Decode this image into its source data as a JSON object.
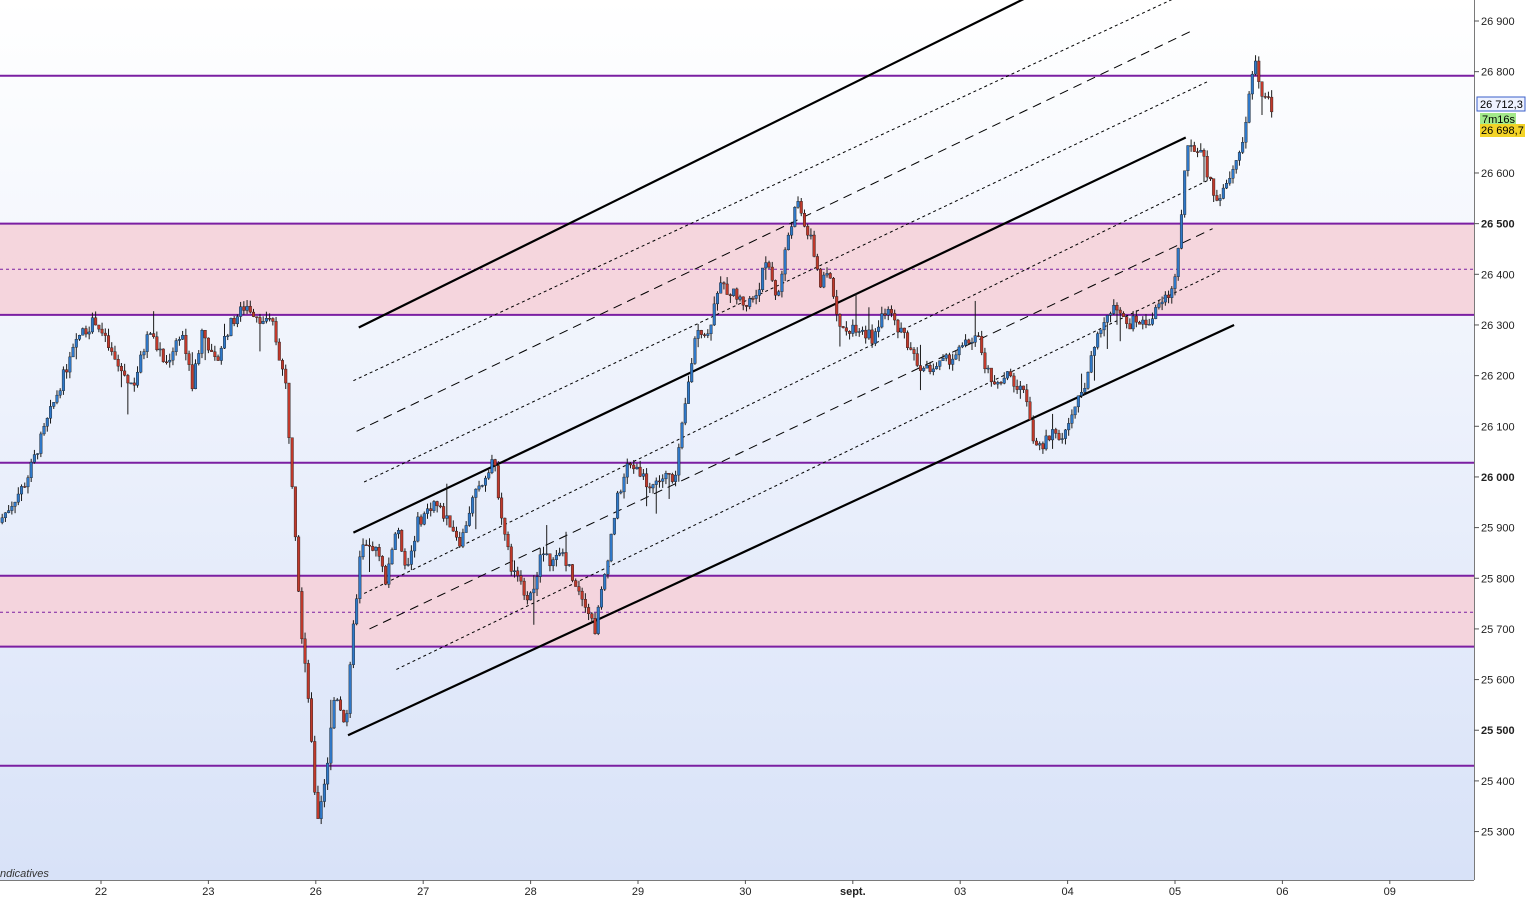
{
  "chart_data": {
    "type": "candlestick",
    "watermark": "ndicatives",
    "price_tags": {
      "last": "26 712,3",
      "timer": "7m16s",
      "other": "26 698,7"
    },
    "y_range": [
      25200,
      26950
    ],
    "y_ticks": [
      {
        "value": 26900,
        "label": "26 900",
        "bold": false
      },
      {
        "value": 26800,
        "label": "26 800",
        "bold": false
      },
      {
        "value": 26600,
        "label": "26 600",
        "bold": false
      },
      {
        "value": 26500,
        "label": "26 500",
        "bold": true
      },
      {
        "value": 26400,
        "label": "26 400",
        "bold": false
      },
      {
        "value": 26300,
        "label": "26 300",
        "bold": false
      },
      {
        "value": 26200,
        "label": "26 200",
        "bold": false
      },
      {
        "value": 26100,
        "label": "26 100",
        "bold": false
      },
      {
        "value": 26000,
        "label": "26 000",
        "bold": true
      },
      {
        "value": 25900,
        "label": "25 900",
        "bold": false
      },
      {
        "value": 25800,
        "label": "25 800",
        "bold": false
      },
      {
        "value": 25700,
        "label": "25 700",
        "bold": false
      },
      {
        "value": 25600,
        "label": "25 600",
        "bold": false
      },
      {
        "value": 25500,
        "label": "25 500",
        "bold": true
      },
      {
        "value": 25400,
        "label": "25 400",
        "bold": false
      },
      {
        "value": 25300,
        "label": "25 300",
        "bold": false
      }
    ],
    "x_ticks": [
      {
        "day": 0,
        "label": "22",
        "bold": false
      },
      {
        "day": 1,
        "label": "23",
        "bold": false
      },
      {
        "day": 2,
        "label": "26",
        "bold": false
      },
      {
        "day": 3,
        "label": "27",
        "bold": false
      },
      {
        "day": 4,
        "label": "28",
        "bold": false
      },
      {
        "day": 5,
        "label": "29",
        "bold": false
      },
      {
        "day": 6,
        "label": "30",
        "bold": false
      },
      {
        "day": 7,
        "label": "sept.",
        "bold": true
      },
      {
        "day": 8,
        "label": "03",
        "bold": false
      },
      {
        "day": 9,
        "label": "04",
        "bold": false
      },
      {
        "day": 10,
        "label": "05",
        "bold": false
      },
      {
        "day": 11,
        "label": "06",
        "bold": false
      },
      {
        "day": 12,
        "label": "09",
        "bold": false
      }
    ],
    "zones": [
      {
        "from": 26320,
        "to": 26500,
        "mid": 26410
      },
      {
        "from": 25665,
        "to": 25805,
        "mid": 25733
      }
    ],
    "hlines": [
      26792,
      26500,
      26320,
      26028,
      25805,
      25665,
      25430
    ],
    "channels": [
      {
        "style": "solid",
        "points": [
          [
            2.4,
            26295
          ],
          [
            8.75,
            26960
          ]
        ]
      },
      {
        "style": "solid",
        "points": [
          [
            2.35,
            25890
          ],
          [
            10.1,
            26670
          ]
        ]
      },
      {
        "style": "solid",
        "points": [
          [
            2.3,
            25490
          ],
          [
            10.55,
            26300
          ]
        ]
      },
      {
        "style": "dotted",
        "points": [
          [
            2.35,
            26190
          ],
          [
            10.15,
            26960
          ]
        ]
      },
      {
        "style": "dashed",
        "points": [
          [
            2.38,
            26090
          ],
          [
            10.15,
            26880
          ]
        ]
      },
      {
        "style": "dotted",
        "points": [
          [
            2.45,
            25990
          ],
          [
            10.3,
            26780
          ]
        ]
      },
      {
        "style": "dotted",
        "points": [
          [
            2.45,
            25770
          ],
          [
            10.35,
            26590
          ]
        ]
      },
      {
        "style": "dashed",
        "points": [
          [
            2.5,
            25700
          ],
          [
            10.35,
            26490
          ]
        ]
      },
      {
        "style": "dotted",
        "points": [
          [
            2.75,
            25620
          ],
          [
            10.45,
            26410
          ]
        ]
      }
    ],
    "path": [
      [
        -0.95,
        25910
      ],
      [
        -0.7,
        25990
      ],
      [
        -0.55,
        26080
      ],
      [
        -0.35,
        26200
      ],
      [
        -0.2,
        26280
      ],
      [
        -0.05,
        26310
      ],
      [
        0.15,
        26220
      ],
      [
        0.3,
        26180
      ],
      [
        0.45,
        26290
      ],
      [
        0.6,
        26220
      ],
      [
        0.75,
        26290
      ],
      [
        0.85,
        26180
      ],
      [
        0.95,
        26300
      ],
      [
        1.05,
        26220
      ],
      [
        1.2,
        26300
      ],
      [
        1.35,
        26340
      ],
      [
        1.5,
        26310
      ],
      [
        1.6,
        26300
      ],
      [
        1.72,
        26180
      ],
      [
        1.8,
        25930
      ],
      [
        1.86,
        25710
      ],
      [
        1.92,
        25600
      ],
      [
        1.98,
        25400
      ],
      [
        2.02,
        25330
      ],
      [
        2.1,
        25420
      ],
      [
        2.18,
        25580
      ],
      [
        2.28,
        25510
      ],
      [
        2.35,
        25700
      ],
      [
        2.42,
        25860
      ],
      [
        2.55,
        25860
      ],
      [
        2.65,
        25800
      ],
      [
        2.75,
        25900
      ],
      [
        2.85,
        25820
      ],
      [
        2.95,
        25910
      ],
      [
        3.1,
        25950
      ],
      [
        3.25,
        25910
      ],
      [
        3.35,
        25870
      ],
      [
        3.45,
        25950
      ],
      [
        3.55,
        25990
      ],
      [
        3.65,
        26040
      ],
      [
        3.75,
        25900
      ],
      [
        3.82,
        25820
      ],
      [
        3.9,
        25790
      ],
      [
        4.0,
        25760
      ],
      [
        4.1,
        25850
      ],
      [
        4.2,
        25830
      ],
      [
        4.3,
        25850
      ],
      [
        4.4,
        25800
      ],
      [
        4.5,
        25760
      ],
      [
        4.6,
        25700
      ],
      [
        4.7,
        25820
      ],
      [
        4.8,
        25950
      ],
      [
        4.9,
        26020
      ],
      [
        5.0,
        26020
      ],
      [
        5.1,
        25980
      ],
      [
        5.25,
        26000
      ],
      [
        5.35,
        26000
      ],
      [
        5.4,
        26080
      ],
      [
        5.48,
        26200
      ],
      [
        5.55,
        26300
      ],
      [
        5.65,
        26280
      ],
      [
        5.75,
        26380
      ],
      [
        5.9,
        26360
      ],
      [
        6.0,
        26340
      ],
      [
        6.1,
        26360
      ],
      [
        6.2,
        26430
      ],
      [
        6.3,
        26350
      ],
      [
        6.4,
        26480
      ],
      [
        6.48,
        26540
      ],
      [
        6.55,
        26500
      ],
      [
        6.62,
        26460
      ],
      [
        6.7,
        26380
      ],
      [
        6.78,
        26400
      ],
      [
        6.85,
        26330
      ],
      [
        6.92,
        26280
      ],
      [
        7.0,
        26300
      ],
      [
        7.1,
        26290
      ],
      [
        7.2,
        26270
      ],
      [
        7.3,
        26330
      ],
      [
        7.45,
        26290
      ],
      [
        7.55,
        26250
      ],
      [
        7.65,
        26210
      ],
      [
        7.8,
        26220
      ],
      [
        7.95,
        26240
      ],
      [
        8.05,
        26260
      ],
      [
        8.15,
        26280
      ],
      [
        8.25,
        26210
      ],
      [
        8.35,
        26180
      ],
      [
        8.45,
        26200
      ],
      [
        8.55,
        26170
      ],
      [
        8.62,
        26160
      ],
      [
        8.68,
        26080
      ],
      [
        8.75,
        26050
      ],
      [
        8.85,
        26090
      ],
      [
        8.95,
        26080
      ],
      [
        9.05,
        26120
      ],
      [
        9.15,
        26180
      ],
      [
        9.25,
        26250
      ],
      [
        9.35,
        26320
      ],
      [
        9.45,
        26330
      ],
      [
        9.55,
        26300
      ],
      [
        9.65,
        26310
      ],
      [
        9.72,
        26300
      ],
      [
        9.8,
        26320
      ],
      [
        9.9,
        26350
      ],
      [
        9.98,
        26370
      ],
      [
        10.05,
        26480
      ],
      [
        10.1,
        26640
      ],
      [
        10.18,
        26650
      ],
      [
        10.26,
        26630
      ],
      [
        10.34,
        26570
      ],
      [
        10.42,
        26550
      ],
      [
        10.5,
        26580
      ],
      [
        10.6,
        26640
      ],
      [
        10.66,
        26700
      ],
      [
        10.7,
        26780
      ],
      [
        10.74,
        26820
      ],
      [
        10.8,
        26760
      ],
      [
        10.86,
        26750
      ],
      [
        10.9,
        26720
      ]
    ]
  }
}
